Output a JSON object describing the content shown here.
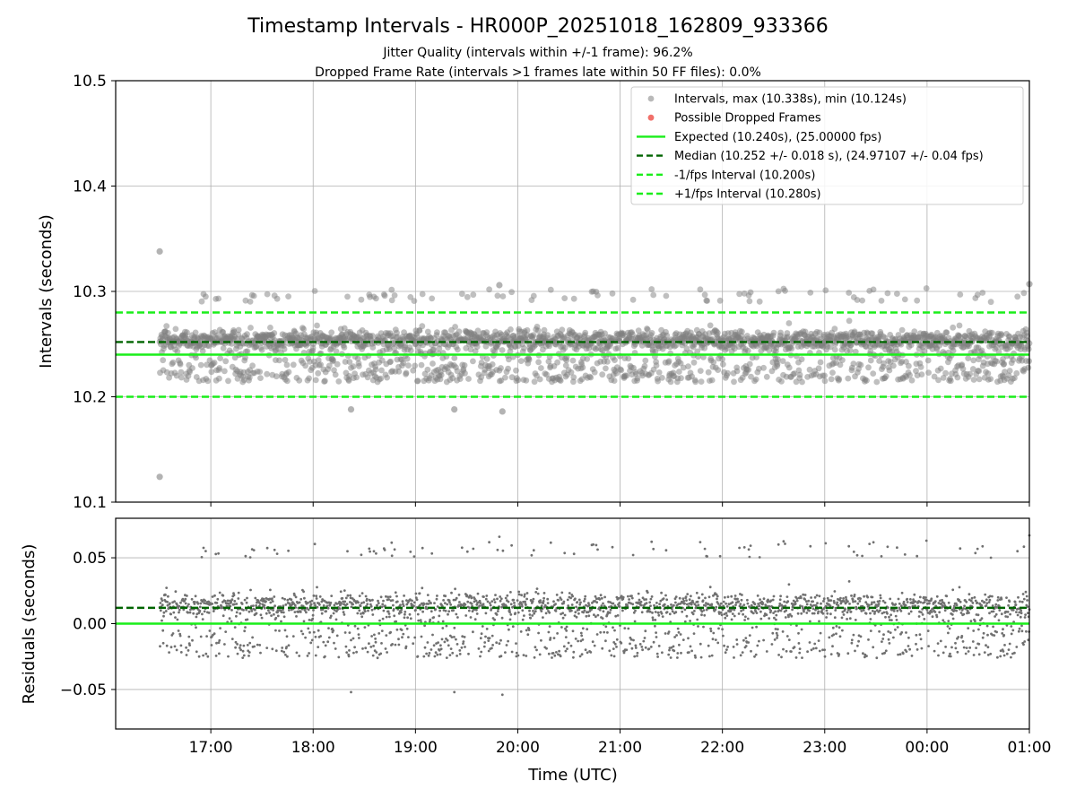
{
  "chart_data": {
    "type": "scatter",
    "title": "Timestamp Intervals - HR000P_20251018_162809_933366",
    "subtitle_lines": [
      "Jitter Quality (intervals within +/-1 frame): 96.2%",
      "Dropped Frame Rate (intervals >1 frames late within 50 FF files): 0.0%"
    ],
    "xlabel": "Time (UTC)",
    "x_ticks": [
      {
        "hour": 17,
        "label": "17:00"
      },
      {
        "hour": 18,
        "label": "18:00"
      },
      {
        "hour": 19,
        "label": "19:00"
      },
      {
        "hour": 20,
        "label": "20:00"
      },
      {
        "hour": 21,
        "label": "21:00"
      },
      {
        "hour": 22,
        "label": "22:00"
      },
      {
        "hour": 23,
        "label": "23:00"
      },
      {
        "hour": 24,
        "label": "00:00"
      },
      {
        "hour": 25,
        "label": "01:00"
      }
    ],
    "xlim_hours": [
      16.07,
      25.0
    ],
    "data_time_range_hours": [
      16.5,
      25.0
    ],
    "top_panel": {
      "ylabel": "Intervals (seconds)",
      "ylim": [
        10.1,
        10.5
      ],
      "y_ticks": [
        {
          "value": 10.1,
          "label": "10.1"
        },
        {
          "value": 10.2,
          "label": "10.2"
        },
        {
          "value": 10.3,
          "label": "10.3"
        },
        {
          "value": 10.4,
          "label": "10.4"
        },
        {
          "value": 10.5,
          "label": "10.5"
        }
      ],
      "expected": 10.24,
      "median": 10.252,
      "lower_interval": 10.2,
      "upper_interval": 10.28,
      "max": 10.338,
      "min": 10.124,
      "outliers": [
        {
          "hour": 16.5,
          "value": 10.338
        },
        {
          "hour": 16.5,
          "value": 10.124
        },
        {
          "hour": 19.85,
          "value": 10.186
        },
        {
          "hour": 18.37,
          "value": 10.188
        },
        {
          "hour": 19.38,
          "value": 10.188
        },
        {
          "hour": 25.0,
          "value": 10.307
        },
        {
          "hour": 19.82,
          "value": 10.306
        }
      ]
    },
    "bottom_panel": {
      "ylabel": "Residuals (seconds)",
      "ylim": [
        -0.08,
        0.08
      ],
      "y_ticks": [
        {
          "value": -0.05,
          "label": "−0.05"
        },
        {
          "value": 0.0,
          "label": "0.00"
        },
        {
          "value": 0.05,
          "label": "0.05"
        }
      ],
      "zero_line": 0.0,
      "median_offset": 0.012
    },
    "legend": {
      "placement": "top-right",
      "entries": [
        {
          "label": "Intervals, max (10.338s), min (10.124s)",
          "kind": "marker",
          "color": "#808080"
        },
        {
          "label": "Possible Dropped Frames",
          "kind": "marker",
          "color": "#f0605a"
        },
        {
          "label": "Expected (10.240s), (25.00000 fps)",
          "kind": "solid",
          "color": "#1aee1a"
        },
        {
          "label": "Median (10.252 +/- 0.018 s), (24.97107 +/- 0.04 fps)",
          "kind": "dashed",
          "color": "#006400"
        },
        {
          "label": "-1/fps Interval (10.200s)",
          "kind": "dashed",
          "color": "#1aee1a"
        },
        {
          "label": "+1/fps Interval (10.280s)",
          "kind": "dashed",
          "color": "#1aee1a"
        }
      ]
    },
    "colors": {
      "points": "#808080",
      "expected": "#1aee1a",
      "median": "#006400",
      "grid": "#b0b0b0"
    }
  }
}
